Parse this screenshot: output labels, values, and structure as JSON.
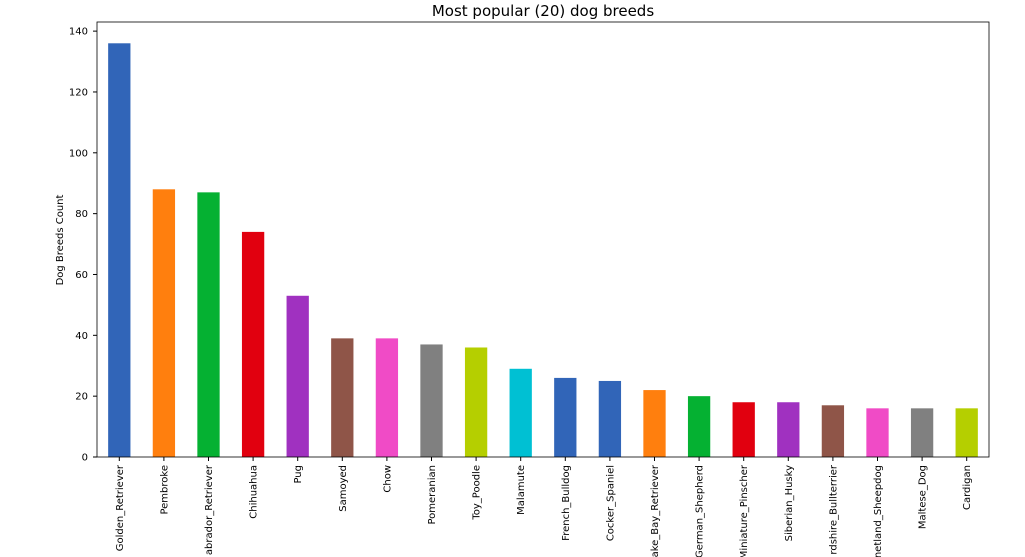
{
  "chart_data": {
    "type": "bar",
    "title": "Most popular (20) dog breeds",
    "y_label": "Dog Breeds Count",
    "categories": [
      "Golden_Retriever",
      "Pembroke",
      "abrador_Retriever",
      "Chihuahua",
      "Pug",
      "Samoyed",
      "Chow",
      "Pomeranian",
      "Toy_Poodle",
      "Malamute",
      "French_Bulldog",
      "Cocker_Spaniel",
      "ake_Bay_Retriever",
      "German_Shepherd",
      "Miniature_Pinscher",
      "Siberian_Husky",
      "rdshire_Bullterrier",
      "netland_Sheepdog",
      "Maltese_Dog",
      "Cardigan"
    ],
    "values": [
      136,
      88,
      87,
      74,
      53,
      39,
      39,
      37,
      36,
      29,
      26,
      25,
      22,
      20,
      18,
      18,
      17,
      16,
      16,
      16
    ],
    "colors": [
      "#3165b8",
      "#ff7f0e",
      "#05b132",
      "#e1000f",
      "#a031c0",
      "#8f5548",
      "#f04bc6",
      "#808080",
      "#b5cf00",
      "#00c0d3",
      "#3165b8",
      "#3165b8",
      "#ff7f0e",
      "#05b132",
      "#e1000f",
      "#a031c0",
      "#8f5548",
      "#f04bc6",
      "#808080",
      "#b5cf00"
    ],
    "ylim": [
      0,
      143
    ],
    "yticks": [
      0,
      20,
      40,
      60,
      80,
      100,
      120,
      140
    ],
    "grid": false
  }
}
